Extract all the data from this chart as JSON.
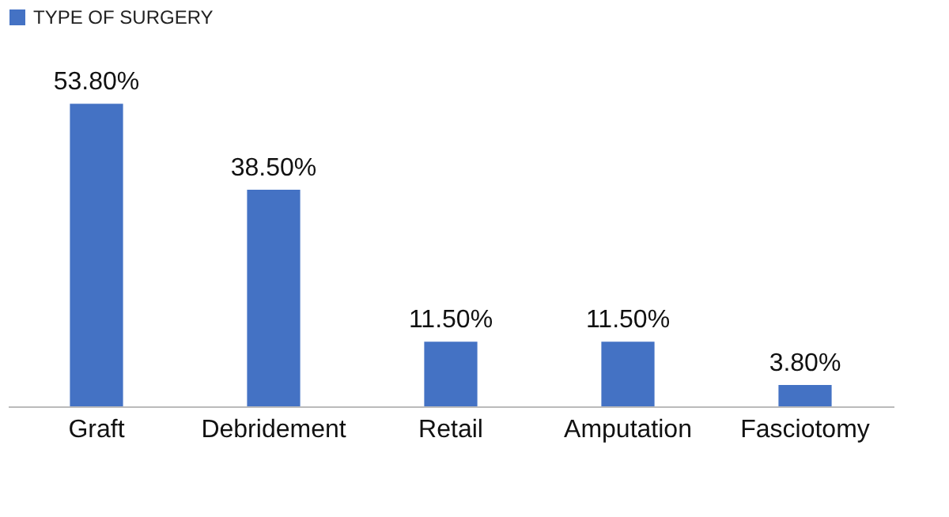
{
  "chart_data": {
    "type": "bar",
    "categories": [
      "Graft",
      "Debridement",
      "Retail",
      "Amputation",
      "Fasciotomy"
    ],
    "series": [
      {
        "name": "TYPE OF SURGERY",
        "color": "#4472c4",
        "values": [
          53.8,
          38.5,
          11.5,
          11.5,
          3.8
        ],
        "value_labels": [
          "53.80%",
          "38.50%",
          "11.50%",
          "11.50%",
          "3.80%"
        ]
      }
    ],
    "legend": "top",
    "grid": false
  }
}
